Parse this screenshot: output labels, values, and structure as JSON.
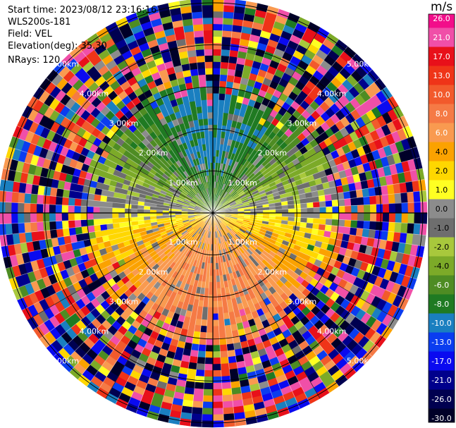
{
  "header": {
    "start_time": "Start time: 2023/08/12 23:16:16",
    "instrument": "WLS200s-181",
    "field": "Field: VEL",
    "elevation": "Elevation(deg): 35.30",
    "nrays": "NRays: 120"
  },
  "colorbar": {
    "unit": "m/s",
    "ticks": [
      "26.0",
      "21.0",
      "17.0",
      "13.0",
      "10.0",
      "8.0",
      "6.0",
      "4.0",
      "2.0",
      "1.0",
      "0.0",
      "-1.0",
      "-2.0",
      "-4.0",
      "-6.0",
      "-8.0",
      "-10.0",
      "-13.0",
      "-17.0",
      "-21.0",
      "-26.0",
      "-30.0"
    ],
    "band_colors": [
      "#f20e8a",
      "#f04fa8",
      "#e8101a",
      "#ef3418",
      "#f25a2c",
      "#f57a45",
      "#f99a50",
      "#fba200",
      "#ffd700",
      "#ffff22",
      "#8c8c8c",
      "#6e6e6e",
      "#a8c83c",
      "#7caa28",
      "#4e8c23",
      "#1f7a22",
      "#1a7fc0",
      "#0a3cf0",
      "#0a0af0",
      "#00008c",
      "#000050",
      "#000028"
    ]
  },
  "chart_data": {
    "type": "heatmap",
    "title": "",
    "field": "VEL",
    "units": "m/s",
    "elevation_deg": 35.3,
    "nrays": 120,
    "range_rings_km": [
      1.0,
      2.0,
      3.0,
      4.0,
      5.0
    ],
    "range_ring_labels": [
      "1.00km",
      "2.00km",
      "3.00km",
      "4.00km",
      "5.00km"
    ],
    "max_range_km": 5.1,
    "color_scale": [
      -30.0,
      -26.0,
      -21.0,
      -17.0,
      -13.0,
      -10.0,
      -8.0,
      -6.0,
      -4.0,
      -2.0,
      -1.0,
      0.0,
      1.0,
      2.0,
      4.0,
      6.0,
      8.0,
      10.0,
      13.0,
      17.0,
      21.0,
      26.0
    ],
    "pattern": {
      "north_near": "approaching, -4 to -10 m/s",
      "south_near": "receding, +4 to +8 m/s",
      "east_west_near": "near zero to +2 m/s",
      "beyond_3km": "noise"
    }
  }
}
